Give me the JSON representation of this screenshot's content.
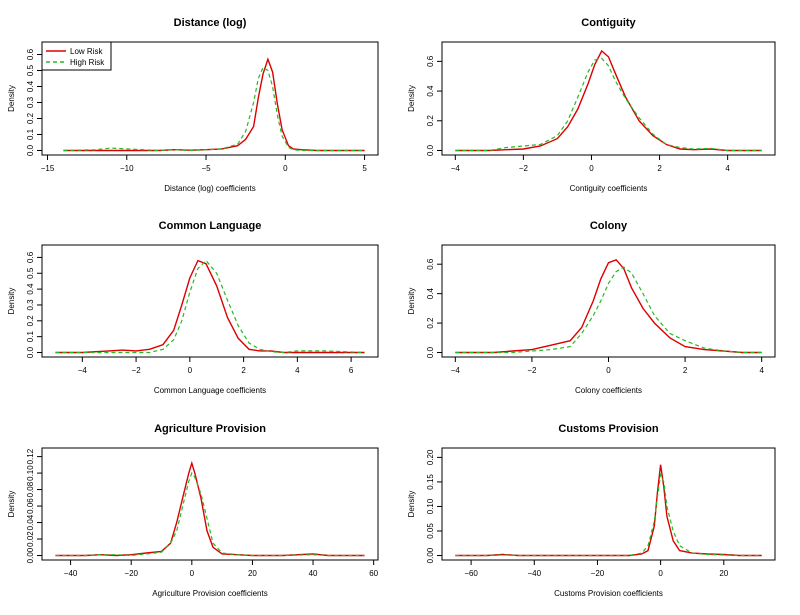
{
  "legend": {
    "entries": [
      {
        "label": "Low Risk",
        "color": "#dd0000",
        "dash": "solid"
      },
      {
        "label": "High Risk",
        "color": "#22bb22",
        "dash": "dashed"
      }
    ]
  },
  "chart_data": [
    {
      "type": "line",
      "title": "Distance (log)",
      "xlabel": "Distance (log) coefficients",
      "ylabel": "Density",
      "xlim": [
        -14.5,
        5
      ],
      "ylim": [
        0,
        0.65
      ],
      "xticks": [
        -15,
        -10,
        -5,
        0,
        5
      ],
      "yticks": [
        0.0,
        0.1,
        0.2,
        0.3,
        0.4,
        0.5,
        0.6
      ],
      "legend": "top-left",
      "series": [
        {
          "name": "Low Risk",
          "x": [
            -14,
            -12,
            -11,
            -10,
            -8,
            -7,
            -6,
            -5,
            -4,
            -3,
            -2.5,
            -2,
            -1.7,
            -1.4,
            -1.1,
            -0.8,
            -0.5,
            -0.2,
            0.2,
            0.5,
            1,
            2,
            3,
            4,
            5
          ],
          "y": [
            0,
            0,
            0,
            0,
            0,
            0.005,
            0.002,
            0.005,
            0.01,
            0.03,
            0.07,
            0.15,
            0.33,
            0.48,
            0.57,
            0.49,
            0.29,
            0.13,
            0.03,
            0.01,
            0.005,
            0,
            0,
            0,
            0
          ]
        },
        {
          "name": "High Risk",
          "x": [
            -14,
            -12,
            -11,
            -10,
            -8,
            -7,
            -6,
            -5,
            -4,
            -3,
            -2.5,
            -2,
            -1.7,
            -1.4,
            -1.1,
            -0.8,
            -0.5,
            -0.2,
            0.2,
            0.5,
            1,
            2,
            3,
            4,
            5
          ],
          "y": [
            0,
            0.005,
            0.015,
            0.01,
            0,
            0.005,
            0,
            0.005,
            0.01,
            0.04,
            0.12,
            0.3,
            0.45,
            0.52,
            0.5,
            0.4,
            0.22,
            0.09,
            0.02,
            0.005,
            0,
            0,
            0,
            0,
            0
          ]
        }
      ]
    },
    {
      "type": "line",
      "title": "Contiguity",
      "xlabel": "Contiguity coefficients",
      "ylabel": "Density",
      "xlim": [
        -4,
        5
      ],
      "ylim": [
        0,
        0.7
      ],
      "xticks": [
        -4,
        -2,
        0,
        2,
        4
      ],
      "yticks": [
        0.0,
        0.2,
        0.4,
        0.6
      ],
      "series": [
        {
          "name": "Low Risk",
          "x": [
            -4,
            -3,
            -2.5,
            -2,
            -1.5,
            -1,
            -0.7,
            -0.4,
            -0.1,
            0.1,
            0.3,
            0.5,
            0.7,
            1,
            1.4,
            1.8,
            2.2,
            2.6,
            3,
            3.5,
            4,
            5
          ],
          "y": [
            0,
            0,
            0.005,
            0.01,
            0.03,
            0.08,
            0.16,
            0.28,
            0.45,
            0.58,
            0.67,
            0.63,
            0.52,
            0.36,
            0.2,
            0.1,
            0.04,
            0.01,
            0.005,
            0.01,
            0,
            0
          ]
        },
        {
          "name": "High Risk",
          "x": [
            -4,
            -3,
            -2.5,
            -2,
            -1.5,
            -1,
            -0.7,
            -0.4,
            -0.1,
            0.1,
            0.3,
            0.5,
            0.7,
            1,
            1.4,
            1.8,
            2.2,
            2.6,
            3,
            3.5,
            4,
            5
          ],
          "y": [
            0,
            0,
            0.02,
            0.03,
            0.04,
            0.1,
            0.2,
            0.36,
            0.53,
            0.61,
            0.62,
            0.57,
            0.47,
            0.35,
            0.22,
            0.11,
            0.04,
            0.02,
            0.01,
            0.015,
            0,
            0
          ]
        }
      ]
    },
    {
      "type": "line",
      "title": "Common Language",
      "xlabel": "Common Language coefficients",
      "ylabel": "Density",
      "xlim": [
        -5,
        6.5
      ],
      "ylim": [
        0,
        0.65
      ],
      "xticks": [
        -4,
        -2,
        0,
        2,
        4,
        6
      ],
      "yticks": [
        0.0,
        0.1,
        0.2,
        0.3,
        0.4,
        0.5,
        0.6
      ],
      "series": [
        {
          "name": "Low Risk",
          "x": [
            -5,
            -4,
            -3.5,
            -3,
            -2.5,
            -2,
            -1.5,
            -1,
            -0.6,
            -0.3,
            0,
            0.3,
            0.6,
            1,
            1.4,
            1.8,
            2.2,
            2.6,
            3,
            3.5,
            4,
            5,
            6.5
          ],
          "y": [
            0,
            0,
            0.005,
            0.01,
            0.015,
            0.01,
            0.02,
            0.05,
            0.14,
            0.3,
            0.47,
            0.58,
            0.56,
            0.42,
            0.22,
            0.09,
            0.02,
            0.01,
            0.01,
            0,
            0,
            0,
            0
          ]
        },
        {
          "name": "High Risk",
          "x": [
            -5,
            -4,
            -3.5,
            -3,
            -2.5,
            -2,
            -1.5,
            -1,
            -0.6,
            -0.3,
            0,
            0.3,
            0.6,
            1,
            1.4,
            1.8,
            2.2,
            2.6,
            3,
            3.5,
            4,
            5,
            6.5
          ],
          "y": [
            0,
            0,
            0,
            0,
            0,
            0,
            0,
            0.02,
            0.08,
            0.2,
            0.38,
            0.53,
            0.58,
            0.5,
            0.33,
            0.17,
            0.06,
            0.02,
            0.005,
            0,
            0.01,
            0.01,
            0
          ]
        }
      ]
    },
    {
      "type": "line",
      "title": "Colony",
      "xlabel": "Colony coefficients",
      "ylabel": "Density",
      "xlim": [
        -4,
        4
      ],
      "ylim": [
        0,
        0.7
      ],
      "xticks": [
        -4,
        -2,
        0,
        2,
        4
      ],
      "yticks": [
        0.0,
        0.2,
        0.4,
        0.6
      ],
      "series": [
        {
          "name": "Low Risk",
          "x": [
            -4,
            -3,
            -2.5,
            -2,
            -1.5,
            -1,
            -0.7,
            -0.4,
            -0.2,
            0,
            0.2,
            0.4,
            0.6,
            0.9,
            1.2,
            1.6,
            2,
            2.5,
            3,
            3.5,
            4
          ],
          "y": [
            0,
            0,
            0.01,
            0.02,
            0.05,
            0.08,
            0.17,
            0.35,
            0.5,
            0.61,
            0.63,
            0.57,
            0.44,
            0.3,
            0.2,
            0.1,
            0.04,
            0.02,
            0.01,
            0,
            0
          ]
        },
        {
          "name": "High Risk",
          "x": [
            -4,
            -3,
            -2.5,
            -2,
            -1.5,
            -1,
            -0.7,
            -0.4,
            -0.2,
            0,
            0.2,
            0.4,
            0.6,
            0.9,
            1.2,
            1.6,
            2,
            2.5,
            3,
            3.5,
            4
          ],
          "y": [
            0,
            0,
            0,
            0.01,
            0.02,
            0.04,
            0.13,
            0.25,
            0.35,
            0.47,
            0.55,
            0.58,
            0.54,
            0.4,
            0.25,
            0.13,
            0.08,
            0.03,
            0.01,
            0,
            0
          ]
        }
      ]
    },
    {
      "type": "line",
      "title": "Agriculture Provision",
      "xlabel": "Agriculture Provision coefficients",
      "ylabel": "Density",
      "xlim": [
        -45,
        57
      ],
      "ylim": [
        0,
        0.125
      ],
      "xticks": [
        -40,
        -20,
        0,
        20,
        40,
        60
      ],
      "yticks": [
        0.0,
        0.02,
        0.04,
        0.06,
        0.08,
        0.1,
        0.12
      ],
      "series": [
        {
          "name": "Low Risk",
          "x": [
            -45,
            -35,
            -30,
            -25,
            -20,
            -15,
            -10,
            -7,
            -5,
            -3,
            -1,
            0,
            1,
            3,
            5,
            7,
            10,
            15,
            20,
            30,
            40,
            45,
            57
          ],
          "y": [
            0,
            0,
            0.001,
            0,
            0.001,
            0.003,
            0.005,
            0.015,
            0.04,
            0.07,
            0.1,
            0.112,
            0.1,
            0.07,
            0.03,
            0.01,
            0.002,
            0.001,
            0,
            0,
            0.002,
            0,
            0
          ]
        },
        {
          "name": "High Risk",
          "x": [
            -45,
            -35,
            -30,
            -25,
            -20,
            -15,
            -10,
            -7,
            -5,
            -3,
            -1,
            0,
            1,
            3,
            5,
            7,
            10,
            15,
            20,
            30,
            40,
            45,
            57
          ],
          "y": [
            0,
            0,
            0.001,
            0.001,
            0,
            0.002,
            0.004,
            0.015,
            0.03,
            0.06,
            0.09,
            0.1,
            0.095,
            0.075,
            0.045,
            0.015,
            0.003,
            0.001,
            0,
            0,
            0.001,
            0,
            0
          ]
        }
      ]
    },
    {
      "type": "line",
      "title": "Customs Provision",
      "xlabel": "Customs Provision coefficients",
      "ylabel": "Density",
      "xlim": [
        -65,
        32
      ],
      "ylim": [
        0,
        0.21
      ],
      "xticks": [
        -60,
        -40,
        -20,
        0,
        20
      ],
      "yticks": [
        0.0,
        0.05,
        0.1,
        0.15,
        0.2
      ],
      "series": [
        {
          "name": "Low Risk",
          "x": [
            -65,
            -55,
            -50,
            -45,
            -30,
            -10,
            -6,
            -4,
            -2,
            -1,
            0,
            1,
            2,
            4,
            6,
            10,
            15,
            20,
            25,
            32
          ],
          "y": [
            0,
            0,
            0.002,
            0,
            0,
            0,
            0.003,
            0.01,
            0.06,
            0.13,
            0.185,
            0.14,
            0.08,
            0.03,
            0.01,
            0.005,
            0.003,
            0.002,
            0,
            0
          ]
        },
        {
          "name": "High Risk",
          "x": [
            -65,
            -55,
            -50,
            -45,
            -30,
            -10,
            -6,
            -4,
            -2,
            -1,
            0,
            1,
            2,
            4,
            6,
            10,
            15,
            20,
            25,
            32
          ],
          "y": [
            0,
            0,
            0.001,
            0,
            0,
            0,
            0.005,
            0.02,
            0.07,
            0.12,
            0.165,
            0.15,
            0.1,
            0.05,
            0.02,
            0.005,
            0.002,
            0.001,
            0,
            0
          ]
        }
      ]
    }
  ]
}
